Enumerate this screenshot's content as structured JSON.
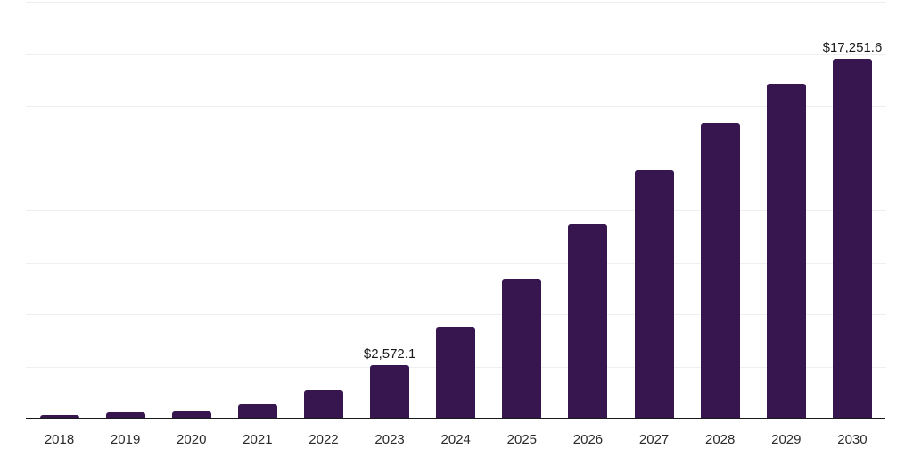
{
  "chart_data": {
    "type": "bar",
    "categories": [
      "2018",
      "2019",
      "2020",
      "2021",
      "2022",
      "2023",
      "2024",
      "2025",
      "2026",
      "2027",
      "2028",
      "2029",
      "2030"
    ],
    "values": [
      150,
      290,
      330,
      670,
      1370,
      2572.1,
      4410,
      6700,
      9330,
      11940,
      14200,
      16050,
      17251.6
    ],
    "annotations": [
      {
        "category": "2023",
        "text": "$2,572.1"
      },
      {
        "category": "2030",
        "text": "$17,251.6"
      }
    ],
    "ylim": [
      0,
      20000
    ],
    "gridline_interval": 2500,
    "grid": "horizontal",
    "y_axis_labels_visible": false,
    "legend": "none"
  },
  "colors": {
    "bar": "#37154f",
    "axis_line": "#1a1a1a",
    "gridline": "#efeff1",
    "tick_label": "#2b2b2b",
    "annotation": "#1a1a1a"
  }
}
